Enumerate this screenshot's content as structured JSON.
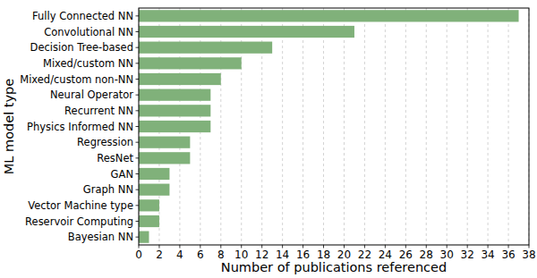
{
  "chart_data": {
    "type": "bar",
    "orientation": "horizontal",
    "xlabel": "Number of publications referenced",
    "ylabel": "ML model type",
    "categories": [
      "Fully Connected NN",
      "Convolutional NN",
      "Decision Tree-based",
      "Mixed/custom NN",
      "Mixed/custom non-NN",
      "Neural Operator",
      "Recurrent NN",
      "Physics Informed NN",
      "Regression",
      "ResNet",
      "GAN",
      "Graph NN",
      "Vector Machine type",
      "Reservoir Computing",
      "Bayesian NN"
    ],
    "values": [
      37,
      21,
      13,
      10,
      8,
      7,
      7,
      7,
      5,
      5,
      3,
      3,
      2,
      2,
      1
    ],
    "color": "#80b17a",
    "xlim": [
      0,
      38
    ],
    "xticks": [
      0,
      2,
      4,
      6,
      8,
      10,
      12,
      14,
      16,
      18,
      20,
      22,
      24,
      26,
      28,
      30,
      32,
      34,
      36,
      38
    ],
    "grid": true
  }
}
